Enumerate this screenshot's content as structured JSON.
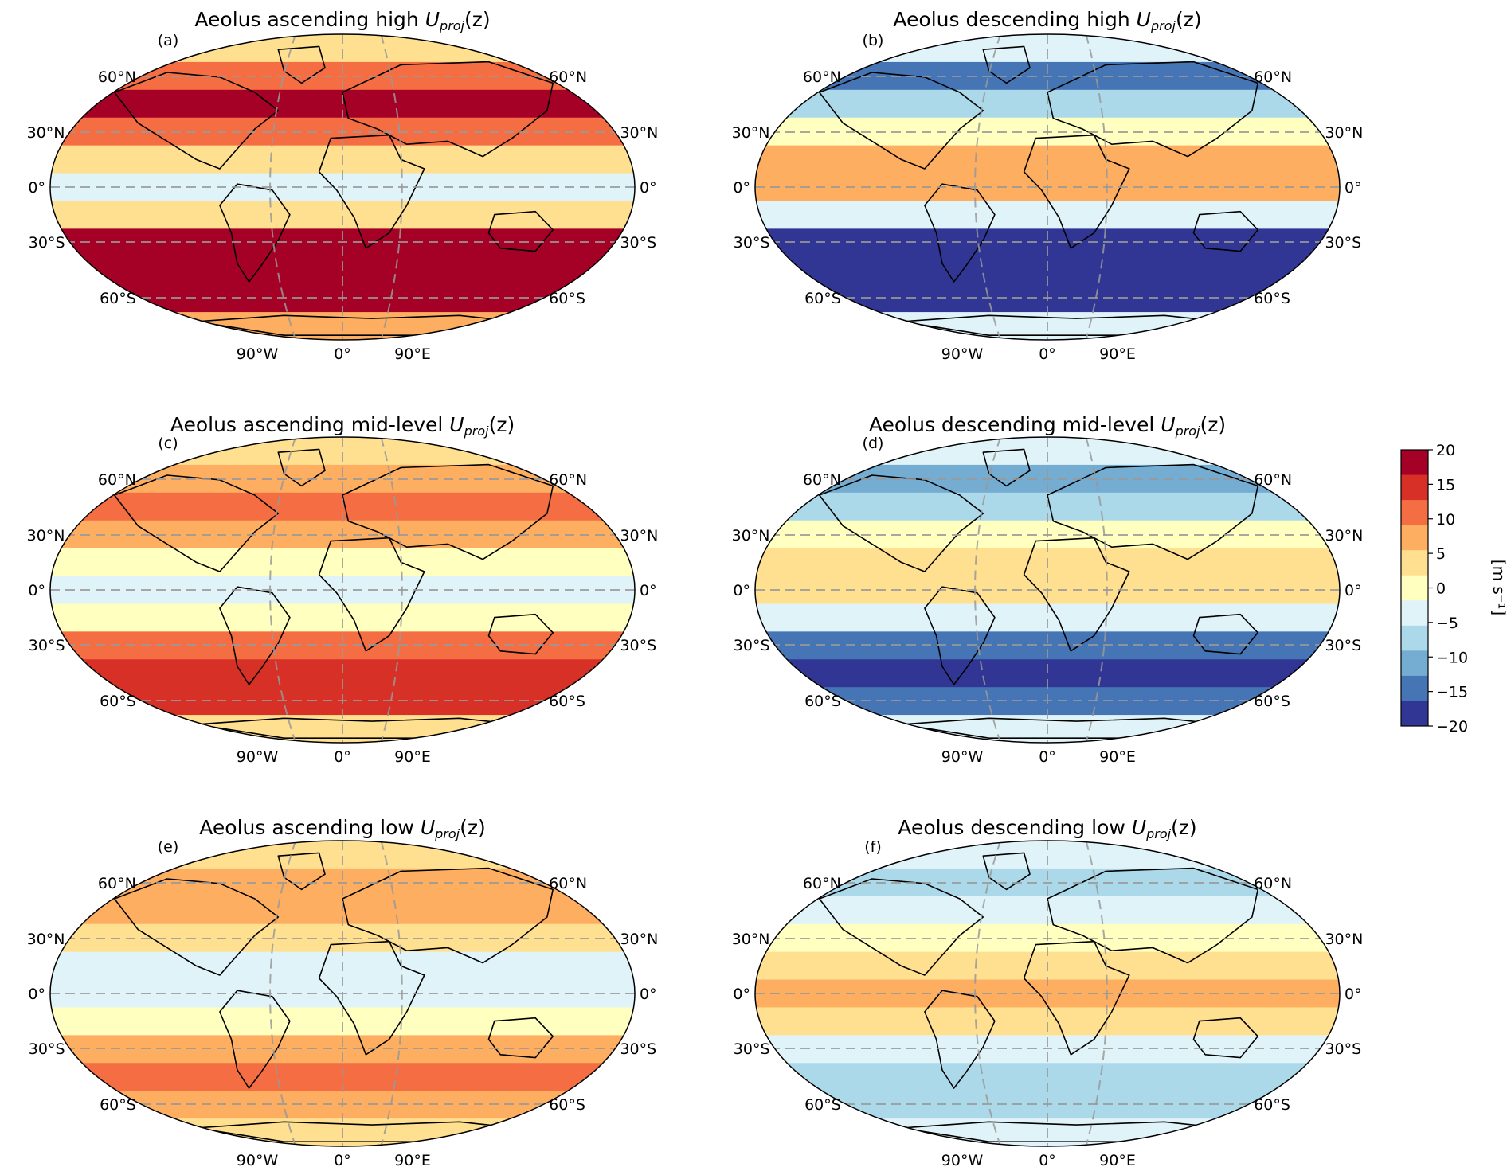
{
  "figure": {
    "colorbar": {
      "label": "[m s⁻¹]",
      "ticks": [
        "20",
        "15",
        "10",
        "5",
        "0",
        "−5",
        "−10",
        "−15",
        "−20"
      ],
      "range": [
        -20,
        20
      ],
      "colors": [
        "#313695",
        "#4575b4",
        "#74add1",
        "#abd9e9",
        "#e0f3f8",
        "#ffffbf",
        "#fee090",
        "#fdae61",
        "#f46d43",
        "#d73027",
        "#a50026"
      ]
    },
    "lat_labels": [
      "60°N",
      "30°N",
      "0°",
      "30°S",
      "60°S"
    ],
    "lon_labels": [
      "90°W",
      "0°",
      "90°E"
    ]
  },
  "chart_data": [
    {
      "type": "heatmap",
      "panel": "(a)",
      "title": "Aeolus ascending high",
      "title_var": "U",
      "title_sub": "proj",
      "title_arg": "(z)",
      "lat_band_centers": [
        75,
        60,
        45,
        30,
        15,
        0,
        -15,
        -30,
        -45,
        -60,
        -75
      ],
      "values": [
        5,
        11,
        17,
        12,
        4,
        -3,
        2,
        17,
        19,
        18,
        6
      ]
    },
    {
      "type": "heatmap",
      "panel": "(b)",
      "title": "Aeolus descending high",
      "title_var": "U",
      "title_sub": "proj",
      "title_arg": "(z)",
      "lat_band_centers": [
        75,
        60,
        45,
        30,
        15,
        0,
        -15,
        -30,
        -45,
        -60,
        -75
      ],
      "values": [
        -4,
        -14,
        -8,
        1,
        9,
        7,
        -3,
        -18,
        -19,
        -18,
        -5
      ]
    },
    {
      "type": "heatmap",
      "panel": "(c)",
      "title": "Aeolus ascending mid-level",
      "title_var": "U",
      "title_sub": "proj",
      "title_arg": "(z)",
      "lat_band_centers": [
        75,
        60,
        45,
        30,
        15,
        0,
        -15,
        -30,
        -45,
        -60,
        -75
      ],
      "values": [
        3,
        8,
        12,
        6,
        0,
        -3,
        1,
        12,
        16,
        14,
        4
      ]
    },
    {
      "type": "heatmap",
      "panel": "(d)",
      "title": "Aeolus descending mid-level",
      "title_var": "U",
      "title_sub": "proj",
      "title_arg": "(z)",
      "lat_band_centers": [
        75,
        60,
        45,
        30,
        15,
        0,
        -15,
        -30,
        -45,
        -60,
        -75
      ],
      "values": [
        -3,
        -10,
        -7,
        0,
        5,
        3,
        -2,
        -14,
        -17,
        -15,
        -4
      ]
    },
    {
      "type": "heatmap",
      "panel": "(e)",
      "title": "Aeolus ascending low",
      "title_var": "U",
      "title_sub": "proj",
      "title_arg": "(z)",
      "lat_band_centers": [
        75,
        60,
        45,
        30,
        15,
        0,
        -15,
        -30,
        -45,
        -60,
        -75
      ],
      "values": [
        2,
        6,
        7,
        2,
        -3,
        -4,
        -1,
        6,
        11,
        8,
        2
      ]
    },
    {
      "type": "heatmap",
      "panel": "(f)",
      "title": "Aeolus descending low",
      "title_var": "U",
      "title_sub": "proj",
      "title_arg": "(z)",
      "lat_band_centers": [
        75,
        60,
        45,
        30,
        15,
        0,
        -15,
        -30,
        -45,
        -60,
        -75
      ],
      "values": [
        -2,
        -7,
        -5,
        1,
        5,
        6,
        3,
        -5,
        -9,
        -8,
        -2
      ]
    }
  ]
}
